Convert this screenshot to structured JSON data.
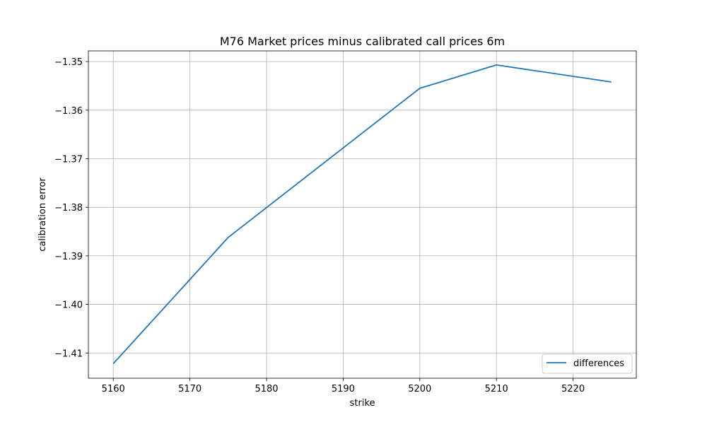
{
  "chart_data": {
    "type": "line",
    "title": "M76 Market prices minus calibrated call prices 6m",
    "xlabel": "strike",
    "ylabel": "calibration error",
    "xlim": [
      5156.75,
      5228.25
    ],
    "ylim": [
      -1.4152,
      -1.3478
    ],
    "xticks": [
      5160,
      5170,
      5180,
      5190,
      5200,
      5210,
      5220
    ],
    "xtick_labels": [
      "5160",
      "5170",
      "5180",
      "5190",
      "5200",
      "5210",
      "5220"
    ],
    "yticks": [
      -1.35,
      -1.36,
      -1.37,
      -1.38,
      -1.39,
      -1.4,
      -1.41
    ],
    "ytick_labels": [
      "−1.35",
      "−1.36",
      "−1.37",
      "−1.38",
      "−1.39",
      "−1.40",
      "−1.41"
    ],
    "grid": true,
    "legend": {
      "position": "lower-right",
      "entries": [
        "differences"
      ]
    },
    "series": [
      {
        "name": "differences",
        "color": "#1f77b4",
        "x": [
          5160,
          5175,
          5200,
          5210,
          5225
        ],
        "y": [
          -1.4122,
          -1.3862,
          -1.3555,
          -1.3507,
          -1.3542
        ]
      }
    ]
  }
}
